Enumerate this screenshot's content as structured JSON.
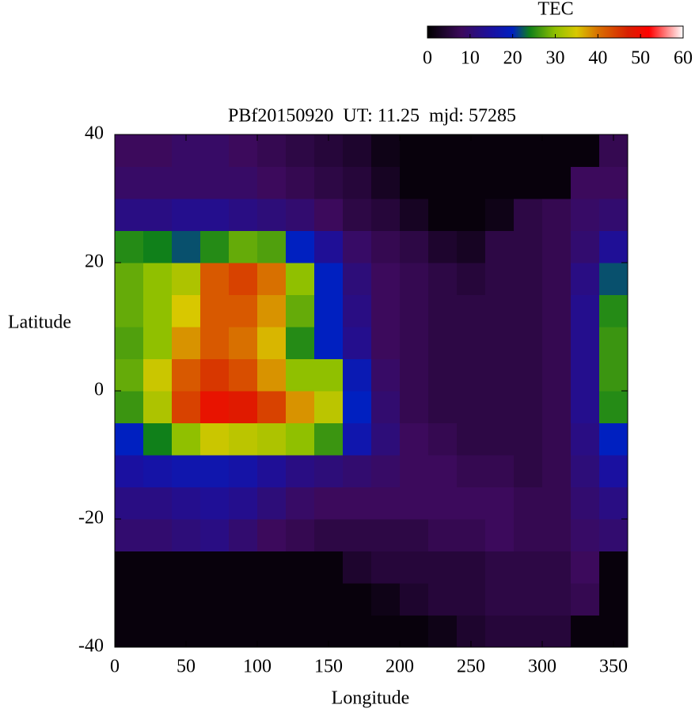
{
  "chart_data": {
    "type": "heatmap",
    "title": "PBf20150920  UT: 11.25  mjd: 57285",
    "xlabel": "Longitude",
    "ylabel": "Latitude",
    "colorbar_label": "TEC",
    "x": [
      10,
      30,
      50,
      70,
      90,
      110,
      130,
      150,
      170,
      190,
      210,
      230,
      250,
      270,
      290,
      310,
      330,
      350
    ],
    "y": [
      -37.5,
      -32.5,
      -27.5,
      -22.5,
      -17.5,
      -12.5,
      -7.5,
      -2.5,
      2.5,
      7.5,
      12.5,
      17.5,
      22.5,
      27.5,
      32.5,
      37.5
    ],
    "z": [
      [
        1,
        1,
        1,
        1,
        1,
        1,
        1,
        1,
        1,
        1,
        1,
        2,
        4,
        5,
        5,
        5,
        1,
        1
      ],
      [
        1,
        1,
        1,
        1,
        1,
        1,
        1,
        1,
        1,
        2,
        4,
        5,
        5,
        6,
        6,
        6,
        7,
        1
      ],
      [
        1,
        1,
        1,
        1,
        1,
        1,
        1,
        1,
        4,
        5,
        5,
        5,
        5,
        6,
        6,
        6,
        8,
        1
      ],
      [
        10,
        10,
        11,
        12,
        10,
        8,
        7,
        6,
        6,
        6,
        6,
        7,
        7,
        8,
        7,
        7,
        9,
        10
      ],
      [
        12,
        12,
        13,
        14,
        13,
        11,
        9,
        8,
        8,
        8,
        8,
        8,
        8,
        8,
        7,
        7,
        10,
        12
      ],
      [
        15,
        16,
        17,
        17,
        16,
        14,
        12,
        11,
        10,
        9,
        8,
        8,
        7,
        7,
        6,
        7,
        11,
        15
      ],
      [
        20,
        24,
        30,
        34,
        33,
        32,
        30,
        26,
        17,
        11,
        8,
        7,
        6,
        6,
        6,
        7,
        12,
        20
      ],
      [
        26,
        32,
        44,
        49,
        48,
        44,
        38,
        33,
        20,
        10,
        7,
        6,
        6,
        6,
        6,
        7,
        13,
        25
      ],
      [
        28,
        34,
        42,
        45,
        43,
        38,
        30,
        30,
        18,
        9,
        7,
        6,
        6,
        6,
        6,
        7,
        13,
        26
      ],
      [
        27,
        30,
        38,
        42,
        40,
        36,
        25,
        20,
        13,
        8,
        7,
        6,
        6,
        6,
        6,
        7,
        13,
        26
      ],
      [
        28,
        30,
        35,
        42,
        42,
        38,
        28,
        20,
        12,
        8,
        7,
        6,
        6,
        6,
        6,
        7,
        13,
        25
      ],
      [
        28,
        30,
        32,
        42,
        44,
        40,
        30,
        20,
        11,
        8,
        7,
        6,
        5,
        6,
        6,
        7,
        12,
        22
      ],
      [
        25,
        24,
        22,
        25,
        28,
        27,
        20,
        14,
        9,
        7,
        6,
        4,
        3,
        6,
        6,
        7,
        10,
        14
      ],
      [
        12,
        12,
        13,
        13,
        12,
        11,
        10,
        8,
        6,
        5,
        3,
        1,
        1,
        2,
        6,
        7,
        9,
        10
      ],
      [
        9,
        9,
        9,
        9,
        9,
        8,
        7,
        6,
        5,
        3,
        1,
        1,
        1,
        1,
        1,
        1,
        8,
        8
      ],
      [
        8,
        8,
        9,
        9,
        8,
        7,
        6,
        5,
        4,
        2,
        1,
        1,
        1,
        1,
        1,
        1,
        1,
        7
      ]
    ],
    "xlim": [
      0,
      360
    ],
    "ylim": [
      -40,
      40
    ],
    "xticks": [
      0,
      50,
      100,
      150,
      200,
      250,
      300,
      350
    ],
    "yticks": [
      -40,
      -20,
      0,
      20,
      40
    ],
    "clim": [
      0,
      60
    ],
    "cticks": [
      0,
      10,
      20,
      30,
      40,
      50,
      60
    ],
    "colorscale": [
      [
        0,
        "#000000"
      ],
      [
        8,
        "#3c0a5c"
      ],
      [
        15,
        "#1a10a0"
      ],
      [
        20,
        "#0020c0"
      ],
      [
        24,
        "#10801a"
      ],
      [
        30,
        "#90c000"
      ],
      [
        35,
        "#d8c800"
      ],
      [
        40,
        "#d87000"
      ],
      [
        47,
        "#d82000"
      ],
      [
        52,
        "#ff0000"
      ],
      [
        60,
        "#ffffff"
      ]
    ]
  }
}
